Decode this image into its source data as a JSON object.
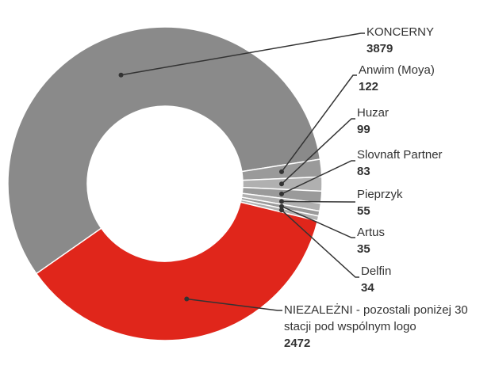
{
  "chart_data": {
    "type": "donut",
    "categories": [
      "KONCERNY",
      "Anwim (Moya)",
      "Huzar",
      "Slovnaft Partner",
      "Pieprzyk",
      "Artus",
      "Delfin",
      "NIEZALEŻNI - pozostali poniżej 30 stacji pod wspólnym logo"
    ],
    "values": [
      3879,
      122,
      99,
      83,
      55,
      35,
      34,
      2472
    ],
    "colors": [
      "#8a8a8a",
      "#9a9a9a",
      "#b0b0b0",
      "#9a9a9a",
      "#b0b0b0",
      "#9a9a9a",
      "#b0b0b0",
      "#e0261b"
    ]
  }
}
